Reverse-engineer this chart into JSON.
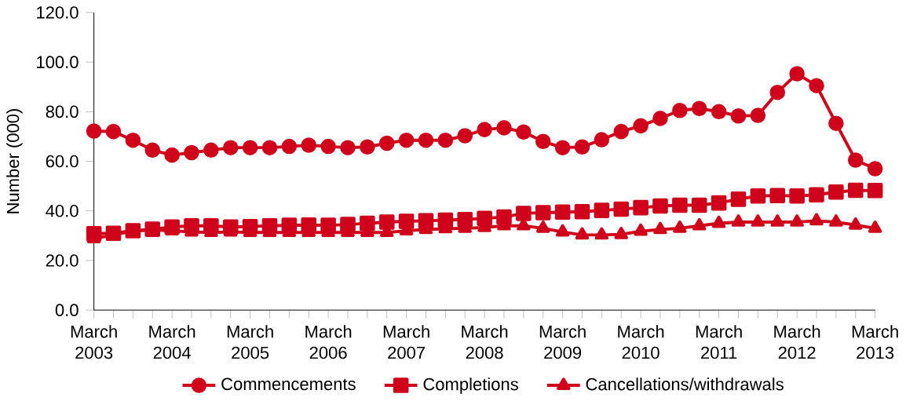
{
  "chart_data": {
    "type": "line",
    "ylabel": "Number (000)",
    "categories": [
      "March 2003",
      null,
      null,
      null,
      "March 2004",
      null,
      null,
      null,
      "March 2005",
      null,
      null,
      null,
      "March 2006",
      null,
      null,
      null,
      "March 2007",
      null,
      null,
      null,
      "March 2008",
      null,
      null,
      null,
      "March 2009",
      null,
      null,
      null,
      "March 2010",
      null,
      null,
      null,
      "March 2011",
      null,
      null,
      null,
      "March 2012",
      null,
      null,
      null,
      "March 2013"
    ],
    "series": [
      {
        "name": "Commencements",
        "color": "#d0021b",
        "marker": "circle",
        "values": [
          72.2,
          72,
          68.5,
          64.5,
          62.5,
          63.5,
          64.5,
          65.5,
          65.5,
          65.5,
          66,
          66.5,
          66,
          65.5,
          65.8,
          67.3,
          68.5,
          68.5,
          68.5,
          70.3,
          72.8,
          73.5,
          71.8,
          68,
          65.5,
          65.8,
          68.7,
          72,
          74.3,
          77.3,
          80.5,
          81.3,
          80,
          78.3,
          78.5,
          87.8,
          95.3,
          90.5,
          75.3,
          60.5,
          57
        ]
      },
      {
        "name": "Completions",
        "color": "#d0021b",
        "marker": "square",
        "values": [
          30.8,
          31,
          32,
          32.6,
          33.5,
          34,
          34,
          33.5,
          33.7,
          34,
          34.2,
          34.3,
          34.2,
          34.5,
          35,
          35.5,
          35.8,
          36,
          36.3,
          36.5,
          37,
          37.5,
          39,
          39.3,
          39.5,
          39.7,
          40.2,
          40.7,
          41.3,
          42,
          42.3,
          42.3,
          43.2,
          44.7,
          46,
          46.2,
          46,
          46.5,
          47.6,
          48.3,
          48.2
        ]
      },
      {
        "name": "Cancellations/withdrawals",
        "color": "#d0021b",
        "marker": "triangle",
        "values": [
          28.8,
          30.3,
          31.8,
          32.3,
          32,
          31.5,
          31.3,
          31.5,
          31.3,
          31.3,
          31.3,
          31.3,
          31.3,
          31.3,
          31.3,
          31.3,
          32,
          32.5,
          32.8,
          33,
          33.3,
          34,
          34,
          33,
          31.5,
          30.3,
          30.3,
          30.5,
          31.8,
          32.5,
          33,
          34,
          35,
          35.5,
          35.5,
          35.5,
          35.5,
          36,
          35.5,
          34.3,
          33
        ]
      }
    ],
    "ylim": [
      0,
      120
    ],
    "yticks": [
      {
        "value": 0,
        "label": "0.0"
      },
      {
        "value": 20,
        "label": "20.0"
      },
      {
        "value": 40,
        "label": "40.0"
      },
      {
        "value": 60,
        "label": "60.0"
      },
      {
        "value": 80,
        "label": "80.0"
      },
      {
        "value": 100,
        "label": "100.0"
      },
      {
        "value": 120,
        "label": "120.0"
      }
    ],
    "grid": false,
    "legend": "bottom",
    "line_style": "solid"
  }
}
